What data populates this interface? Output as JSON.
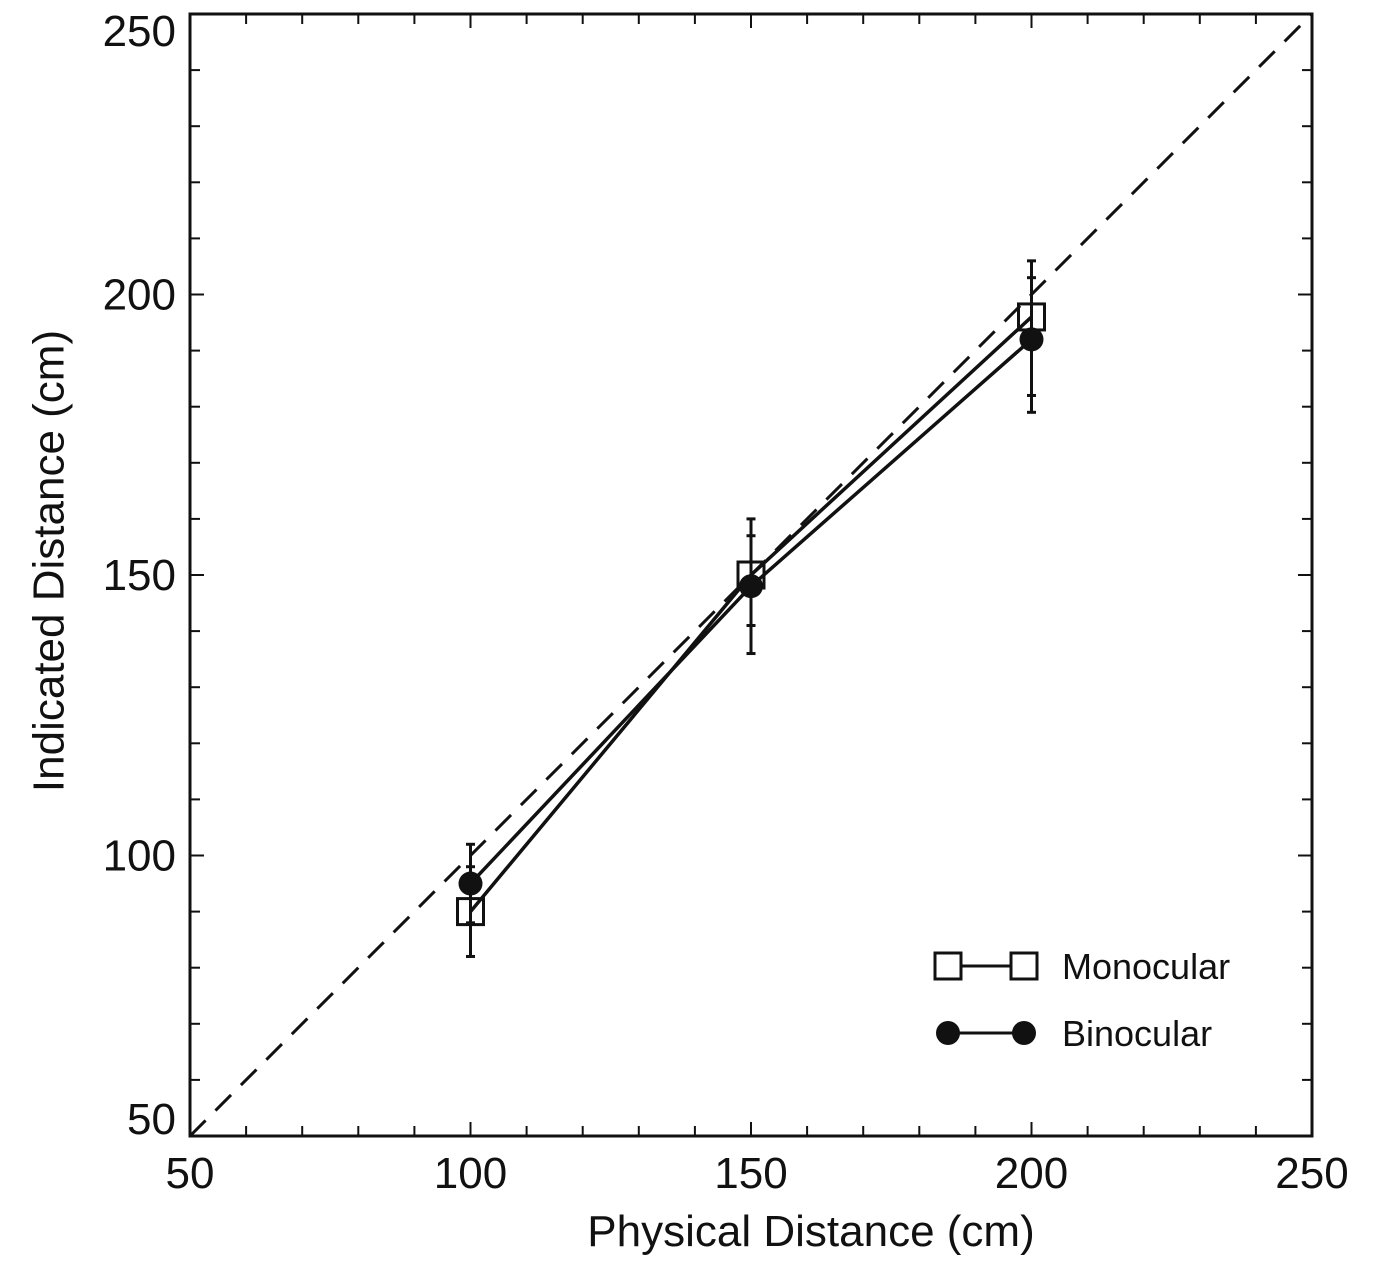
{
  "chart_data": {
    "type": "line",
    "title": "",
    "xlabel": "Physical Distance (cm)",
    "ylabel": "Indicated Distance (cm)",
    "xlim": [
      50,
      250
    ],
    "ylim": [
      50,
      250
    ],
    "x_ticks": [
      50,
      100,
      150,
      200,
      250
    ],
    "y_ticks": [
      50,
      100,
      150,
      200,
      250
    ],
    "x_tick_labels": [
      "50",
      "100",
      "150",
      "200",
      "250"
    ],
    "y_tick_labels": [
      "50",
      "100",
      "150",
      "200",
      "250"
    ],
    "minor_tick_step": 10,
    "grid": false,
    "legend_position": "bottom-right",
    "reference_line": {
      "style": "dashed",
      "points": [
        [
          50,
          50
        ],
        [
          250,
          250
        ]
      ]
    },
    "series": [
      {
        "name": "Monocular",
        "marker": "open-square",
        "x": [
          100,
          150,
          200
        ],
        "y": [
          90,
          150,
          196
        ],
        "error_low": [
          82,
          141,
          182
        ],
        "error_high": [
          98,
          157,
          206
        ]
      },
      {
        "name": "Binocular",
        "marker": "filled-circle",
        "x": [
          100,
          150,
          200
        ],
        "y": [
          95,
          148,
          192
        ],
        "error_low": [
          88,
          136,
          179
        ],
        "error_high": [
          102,
          160,
          203
        ]
      }
    ]
  }
}
